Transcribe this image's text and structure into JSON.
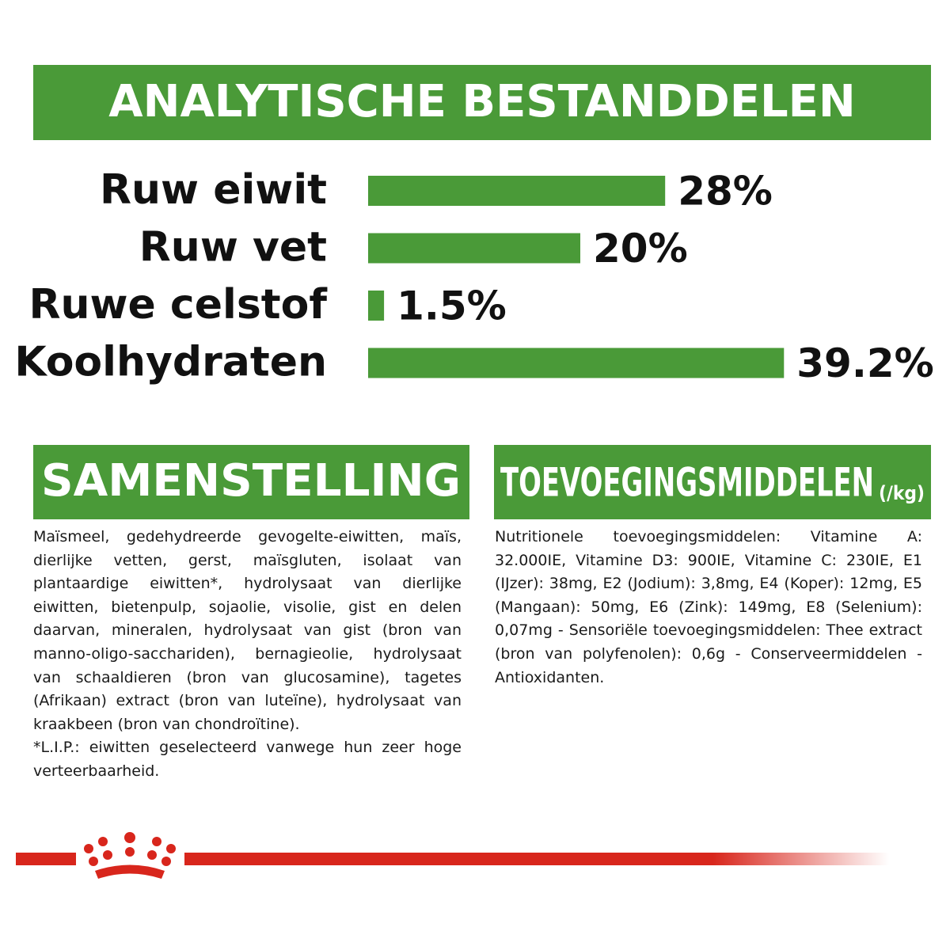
{
  "chart_data": {
    "type": "bar",
    "orientation": "horizontal",
    "title": "ANALYTISCHE BESTANDDELEN",
    "categories": [
      "Ruw eiwit",
      "Ruw vet",
      "Ruwe celstof",
      "Koolhydraten"
    ],
    "values": [
      28,
      20,
      1.5,
      39.2
    ],
    "value_labels": [
      "28%",
      "20%",
      "1.5%",
      "39.2%"
    ],
    "color": "#4a9a38"
  },
  "composition": {
    "title": "SAMENSTELLING",
    "text": "Maïsmeel, gedehydreerde gevogelte-eiwitten, maïs, dierlijke vetten, gerst, maïsgluten, isolaat van plantaardige eiwitten*, hydrolysaat van dierlijke eiwitten, bietenpulp, sojaolie, visolie, gist en delen daarvan, mineralen, hydrolysaat van gist (bron van manno-oligo-sacchariden), bernagieolie, hydrolysaat van schaaldieren (bron van glucosamine), tagetes (Afrikaan) extract (bron van luteïne), hydrolysaat van kraakbeen (bron van chondroïtine).",
    "note": "*L.I.P.: eiwitten geselecteerd vanwege hun zeer hoge verteerbaarheid."
  },
  "additives": {
    "title": "TOEVOEGINGSMIDDELEN",
    "unit": "(/kg)",
    "text": "Nutritionele toevoegingsmiddelen: Vitamine A: 32.000IE, Vitamine D3: 900IE, Vitamine C: 230IE, E1 (IJzer): 38mg, E2 (Jodium): 3,8mg, E4 (Koper): 12mg, E5 (Mangaan): 50mg, E6 (Zink): 149mg, E8 (Selenium): 0,07mg - Sensoriële toevoegingsmiddelen: Thee extract (bron van polyfenolen): 0,6g - Conserveermiddelen - Antioxidanten."
  }
}
